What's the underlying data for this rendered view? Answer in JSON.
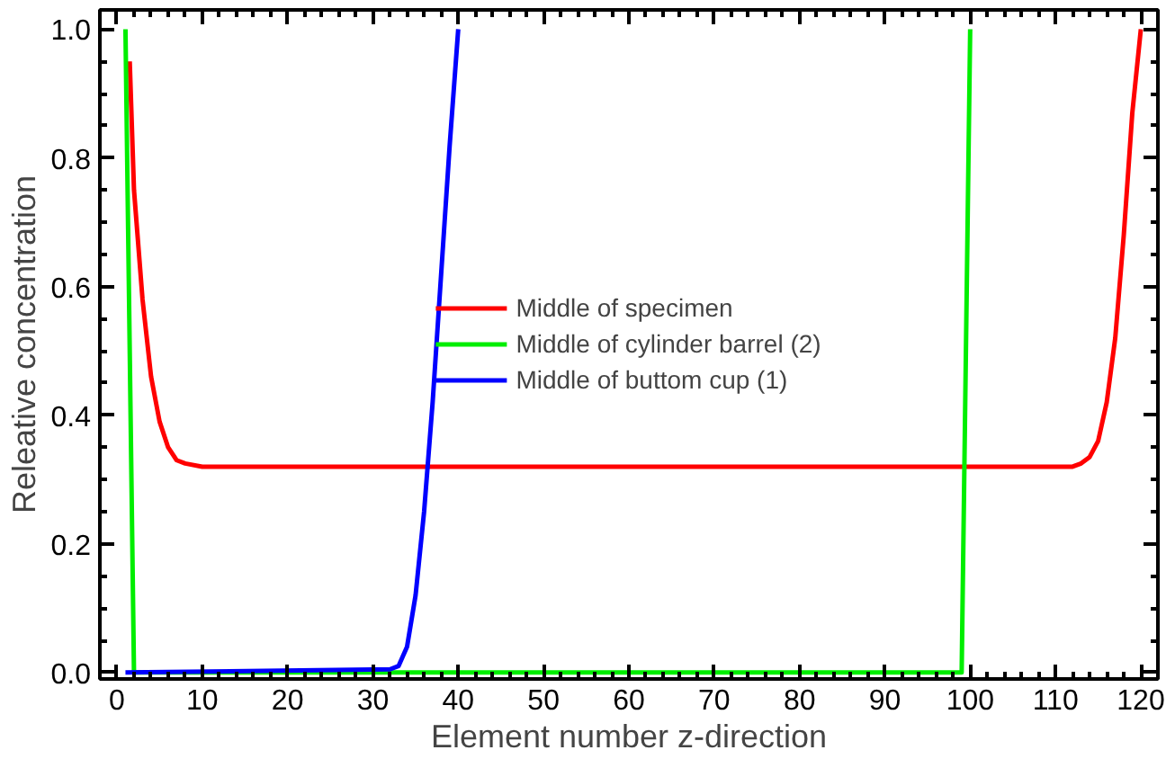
{
  "chart_data": {
    "type": "line",
    "xlabel": "Element number z-direction",
    "ylabel": "Releative concentration",
    "xlim": [
      -2,
      122
    ],
    "ylim": [
      -0.01,
      1.03
    ],
    "xticks": [
      0,
      10,
      20,
      30,
      40,
      50,
      60,
      70,
      80,
      90,
      100,
      110,
      120
    ],
    "yticks": [
      {
        "value": 0,
        "label": "0.0"
      },
      0.2,
      0.4,
      0.6,
      0.8,
      {
        "value": 1,
        "label": "1.0"
      }
    ],
    "grid": false,
    "legend": "center",
    "line_style": "solid",
    "marker": "none",
    "series": [
      {
        "name": "Middle of specimen",
        "color": "#ff0000",
        "x": [
          1.5,
          2,
          3,
          4,
          5,
          6,
          7,
          8,
          10,
          20,
          40,
          60,
          80,
          100,
          112,
          113,
          114,
          115,
          116,
          117,
          118,
          119,
          120
        ],
        "values": [
          0.95,
          0.75,
          0.58,
          0.46,
          0.39,
          0.35,
          0.33,
          0.325,
          0.32,
          0.32,
          0.32,
          0.32,
          0.32,
          0.32,
          0.32,
          0.325,
          0.335,
          0.36,
          0.42,
          0.52,
          0.68,
          0.87,
          1.0
        ]
      },
      {
        "name": "Middle of cylinder barrel (2)",
        "color": "#00ee00",
        "x": [
          1,
          2,
          99,
          100
        ],
        "values": [
          1.0,
          0.0,
          0.0,
          1.0
        ]
      },
      {
        "name": "Middle of buttom cup (1)",
        "color": "#0000ff",
        "x": [
          1,
          32,
          33,
          34,
          35,
          36,
          37,
          38,
          39,
          40
        ],
        "values": [
          0.0,
          0.005,
          0.01,
          0.04,
          0.12,
          0.25,
          0.42,
          0.62,
          0.82,
          1.0
        ]
      }
    ]
  }
}
